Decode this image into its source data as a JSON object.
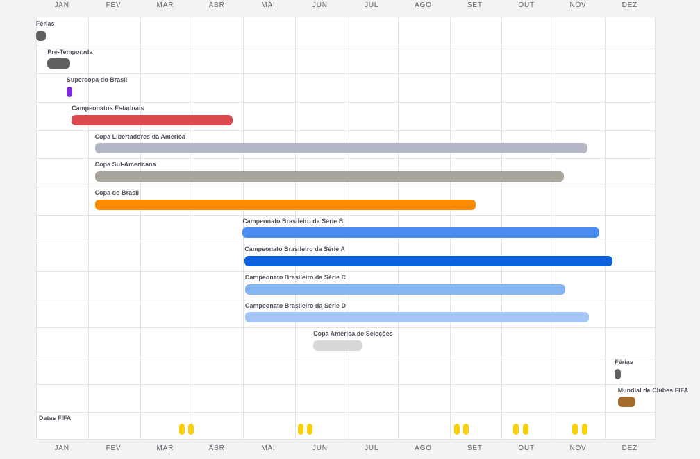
{
  "page": {
    "background_color": "#f4f3f4",
    "grid_background_color": "#ffffff",
    "grid_line_color": "#e3e3e6",
    "month_label_color": "#5c6068",
    "row_label_color": "#4c505a"
  },
  "chart_data": {
    "type": "bar",
    "subtype": "gantt-season-timeline",
    "x_unit": "months",
    "x_range": [
      0,
      12
    ],
    "grid": true,
    "month_labels_top": [
      "JAN",
      "FEV",
      "MAR",
      "ABR",
      "MAI",
      "JUN",
      "JUL",
      "AGO",
      "SET",
      "OUT",
      "NOV",
      "DEZ"
    ],
    "month_labels_bottom": [
      "JAN",
      "FEV",
      "MAR",
      "ABR",
      "MAI",
      "JUN",
      "JUL",
      "AGO",
      "SET",
      "OUT",
      "NOV",
      "DEZ"
    ],
    "rows": [
      {
        "label": "Férias",
        "start": 0.0,
        "end": 0.19,
        "color": "#606060"
      },
      {
        "label": "Pré-Temporada",
        "start": 0.22,
        "end": 0.66,
        "color": "#606060"
      },
      {
        "label": "Supercopa do Brasil",
        "start": 0.59,
        "end": 0.7,
        "color": "#7c2ed6"
      },
      {
        "label": "Campeonatos Estaduais",
        "start": 0.69,
        "end": 3.81,
        "color": "#db4a4f"
      },
      {
        "label": "Copa Libertadores da América",
        "start": 1.14,
        "end": 10.68,
        "color": "#b3b6c4"
      },
      {
        "label": "Copa Sul-Americana",
        "start": 1.14,
        "end": 10.22,
        "color": "#a9a59d"
      },
      {
        "label": "Copa do Brasil",
        "start": 1.14,
        "end": 8.52,
        "color": "#fb8b00"
      },
      {
        "label": "Campeonato Brasileiro da Série B",
        "start": 4.0,
        "end": 10.91,
        "color": "#4a8cf2"
      },
      {
        "label": "Campeonato Brasileiro da Série A",
        "start": 4.04,
        "end": 11.17,
        "color": "#0b61dc"
      },
      {
        "label": "Campeonato Brasileiro da Série C",
        "start": 4.05,
        "end": 10.25,
        "color": "#86b5f4"
      },
      {
        "label": "Campeonato Brasileiro da Série D",
        "start": 4.05,
        "end": 10.71,
        "color": "#a5c7f8"
      },
      {
        "label": "Copa América de Seleções",
        "start": 5.37,
        "end": 6.32,
        "color": "#d8d8d8"
      },
      {
        "label": "Férias",
        "start": 11.21,
        "end": 11.33,
        "color": "#606060"
      },
      {
        "label": "Mundial de Clubes FIFA",
        "start": 11.27,
        "end": 11.61,
        "color": "#a36c2b"
      }
    ],
    "fifa_dates_row": {
      "label": "Datas FIFA",
      "marker_color": "#fad00a",
      "markers": [
        2.77,
        2.94,
        5.07,
        5.25,
        8.1,
        8.28,
        9.24,
        9.43,
        10.39,
        10.58
      ]
    }
  }
}
